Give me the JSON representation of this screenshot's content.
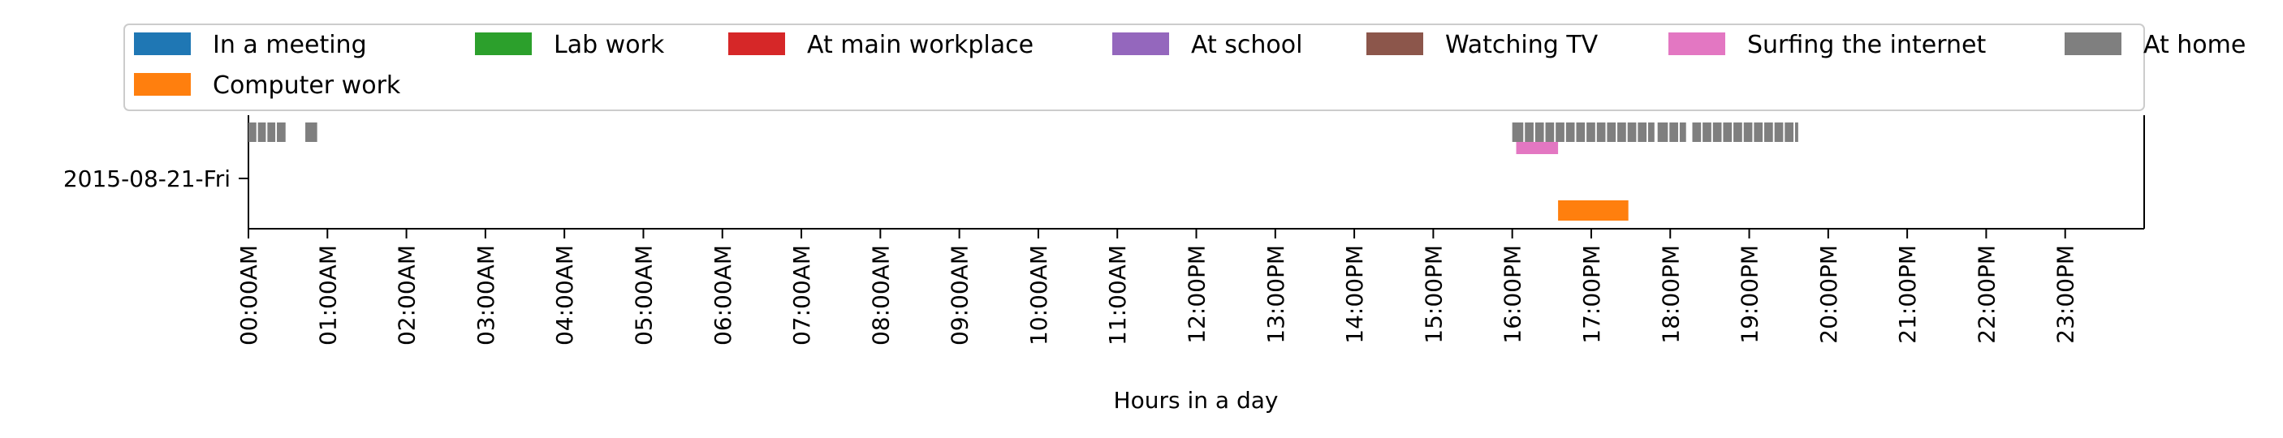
{
  "chart_data": {
    "type": "timeline",
    "title": "",
    "xlabel": "Hours in a day",
    "ylabel": "",
    "xlim": [
      0,
      24
    ],
    "xunit": "hours",
    "x_tick_labels": [
      "00:00AM",
      "01:00AM",
      "02:00AM",
      "03:00AM",
      "04:00AM",
      "05:00AM",
      "06:00AM",
      "07:00AM",
      "08:00AM",
      "09:00AM",
      "10:00AM",
      "11:00AM",
      "12:00PM",
      "13:00PM",
      "14:00PM",
      "15:00PM",
      "16:00PM",
      "17:00PM",
      "18:00PM",
      "19:00PM",
      "20:00PM",
      "21:00PM",
      "22:00PM",
      "23:00PM"
    ],
    "y_categories": [
      "2015-08-21-Fri"
    ],
    "legend_position": "top",
    "grid": false,
    "series": [
      {
        "name": "In a meeting",
        "color": "#1f77b4",
        "intervals": []
      },
      {
        "name": "Computer work",
        "color": "#ff7f0e",
        "intervals": [
          [
            16.58,
            17.47
          ]
        ]
      },
      {
        "name": "Lab work",
        "color": "#2ca02c",
        "intervals": []
      },
      {
        "name": "At main workplace",
        "color": "#d62728",
        "intervals": []
      },
      {
        "name": "At school",
        "color": "#9467bd",
        "intervals": []
      },
      {
        "name": "Watching TV",
        "color": "#8c564b",
        "intervals": []
      },
      {
        "name": "Surfing the internet",
        "color": "#e377c2",
        "intervals": [
          [
            16.05,
            16.58
          ]
        ]
      },
      {
        "name": "At home",
        "color": "#7f7f7f",
        "intervals": [
          [
            0.0,
            0.1
          ],
          [
            0.12,
            0.22
          ],
          [
            0.24,
            0.34
          ],
          [
            0.36,
            0.47
          ],
          [
            0.72,
            0.87
          ],
          [
            16.0,
            16.14
          ],
          [
            16.16,
            16.27
          ],
          [
            16.29,
            16.4
          ],
          [
            16.42,
            16.53
          ],
          [
            16.55,
            16.66
          ],
          [
            16.68,
            16.79
          ],
          [
            16.81,
            16.92
          ],
          [
            16.94,
            17.05
          ],
          [
            17.07,
            17.18
          ],
          [
            17.2,
            17.31
          ],
          [
            17.33,
            17.44
          ],
          [
            17.46,
            17.57
          ],
          [
            17.59,
            17.7
          ],
          [
            17.72,
            17.8
          ],
          [
            17.84,
            17.97
          ],
          [
            17.99,
            18.1
          ],
          [
            18.12,
            18.2
          ],
          [
            18.28,
            18.39
          ],
          [
            18.41,
            18.52
          ],
          [
            18.54,
            18.65
          ],
          [
            18.67,
            18.78
          ],
          [
            18.8,
            18.91
          ],
          [
            18.93,
            19.04
          ],
          [
            19.06,
            19.17
          ],
          [
            19.19,
            19.3
          ],
          [
            19.32,
            19.43
          ],
          [
            19.45,
            19.56
          ],
          [
            19.58,
            19.62
          ]
        ]
      }
    ]
  }
}
